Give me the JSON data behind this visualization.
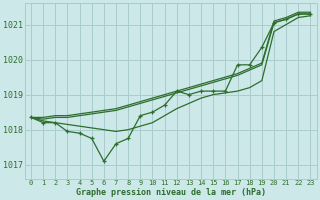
{
  "background_color": "#cce8e8",
  "grid_color": "#aacccc",
  "line_color": "#2d6e2d",
  "xlabel": "Graphe pression niveau de la mer (hPa)",
  "ylim": [
    1016.6,
    1021.6
  ],
  "xlim": [
    -0.5,
    23.5
  ],
  "yticks": [
    1017,
    1018,
    1019,
    1020,
    1021
  ],
  "xticks": [
    0,
    1,
    2,
    3,
    4,
    5,
    6,
    7,
    8,
    9,
    10,
    11,
    12,
    13,
    14,
    15,
    16,
    17,
    18,
    19,
    20,
    21,
    22,
    23
  ],
  "series_top": [
    1018.35,
    1018.35,
    1018.4,
    1018.4,
    1018.45,
    1018.5,
    1018.55,
    1018.6,
    1018.7,
    1018.8,
    1018.9,
    1019.0,
    1019.1,
    1019.2,
    1019.3,
    1019.4,
    1019.5,
    1019.6,
    1019.75,
    1019.9,
    1021.1,
    1021.2,
    1021.35,
    1021.35
  ],
  "series_mid": [
    1018.35,
    1018.3,
    1018.35,
    1018.35,
    1018.4,
    1018.45,
    1018.5,
    1018.55,
    1018.65,
    1018.75,
    1018.85,
    1018.95,
    1019.05,
    1019.15,
    1019.25,
    1019.35,
    1019.45,
    1019.55,
    1019.7,
    1019.85,
    1021.05,
    1021.15,
    1021.3,
    1021.3
  ],
  "series_low": [
    1018.35,
    1018.25,
    1018.2,
    1018.15,
    1018.1,
    1018.05,
    1018.0,
    1017.95,
    1018.0,
    1018.1,
    1018.2,
    1018.4,
    1018.6,
    1018.75,
    1018.9,
    1019.0,
    1019.05,
    1019.1,
    1019.2,
    1019.4,
    1020.8,
    1021.0,
    1021.2,
    1021.25
  ],
  "series_markers": [
    1018.35,
    1018.2,
    1018.2,
    1017.95,
    1017.9,
    1017.75,
    1017.1,
    1017.6,
    1017.75,
    1018.4,
    1018.5,
    1018.7,
    1019.1,
    1019.0,
    1019.1,
    1019.1,
    1019.1,
    1019.85,
    1019.85,
    1020.35,
    1021.05,
    1021.15,
    1021.3,
    1021.3
  ]
}
